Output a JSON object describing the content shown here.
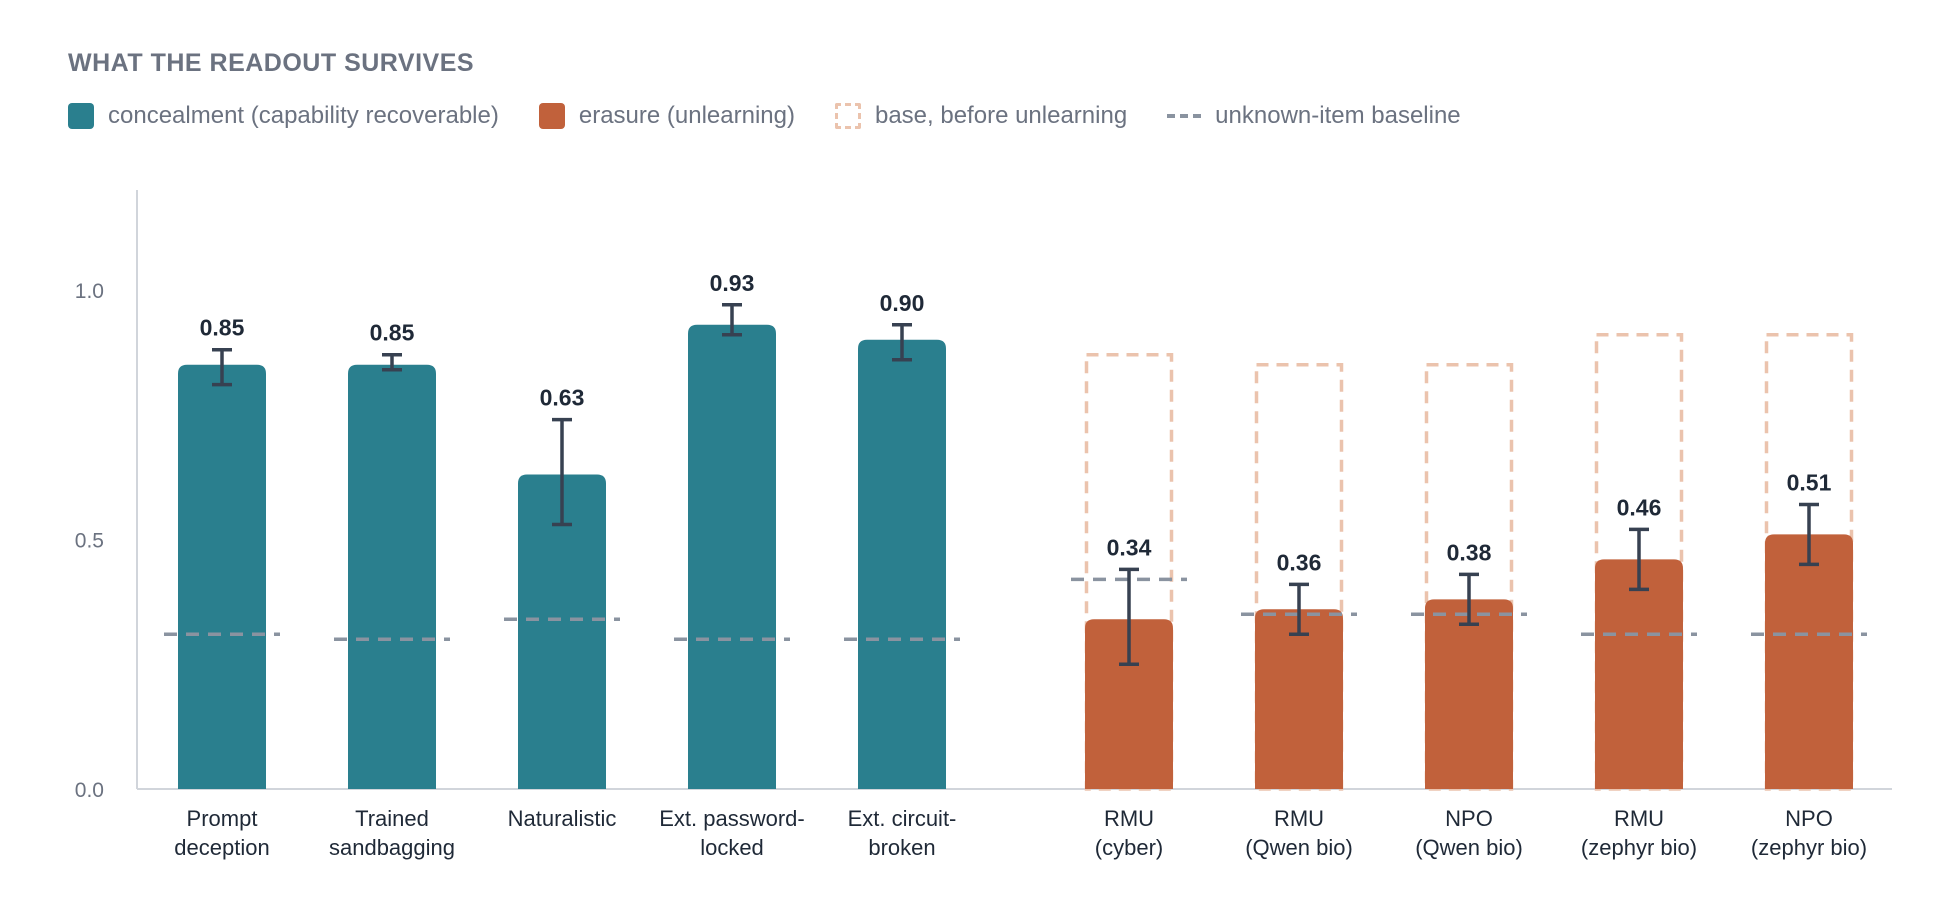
{
  "chart_data": {
    "type": "bar",
    "title": "WHAT THE READOUT SURVIVES",
    "xlabel": "",
    "ylabel": "",
    "ylim": [
      0,
      1.2
    ],
    "yticks": [
      0.0,
      0.5,
      1.0
    ],
    "ytick_labels": [
      "0.0",
      "0.5",
      "1.0"
    ],
    "grid": false,
    "legend_position": "top-left",
    "colors": {
      "concealment": "#2a7f8e",
      "erasure": "#c1613b",
      "base_outline": "#ebc3ad",
      "baseline": "#8a93a0",
      "error_bar": "#374151"
    },
    "legend": [
      {
        "label": "concealment (capability recoverable)",
        "kind": "concealment"
      },
      {
        "label": "erasure (unlearning)",
        "kind": "erasure"
      },
      {
        "label": "base, before unlearning",
        "kind": "base"
      },
      {
        "label": "unknown-item baseline",
        "kind": "baseline"
      }
    ],
    "categories": [
      [
        "Prompt",
        "deception"
      ],
      [
        "Trained",
        "sandbagging"
      ],
      [
        "Naturalistic"
      ],
      [
        "Ext. password-",
        "locked"
      ],
      [
        "Ext. circuit-",
        "broken"
      ],
      [
        "RMU",
        "(cyber)"
      ],
      [
        "RMU",
        "(Qwen bio)"
      ],
      [
        "NPO",
        "(Qwen bio)"
      ],
      [
        "RMU",
        "(zephyr bio)"
      ],
      [
        "NPO",
        "(zephyr bio)"
      ]
    ],
    "groups": [
      "concealment",
      "concealment",
      "concealment",
      "concealment",
      "concealment",
      "erasure",
      "erasure",
      "erasure",
      "erasure",
      "erasure"
    ],
    "values": [
      0.85,
      0.85,
      0.63,
      0.93,
      0.9,
      0.34,
      0.36,
      0.38,
      0.46,
      0.51
    ],
    "value_labels": [
      "0.85",
      "0.85",
      "0.63",
      "0.93",
      "0.90",
      "0.34",
      "0.36",
      "0.38",
      "0.46",
      "0.51"
    ],
    "error_low": [
      0.81,
      0.84,
      0.53,
      0.91,
      0.86,
      0.25,
      0.31,
      0.33,
      0.4,
      0.45
    ],
    "error_high": [
      0.88,
      0.87,
      0.74,
      0.97,
      0.93,
      0.44,
      0.41,
      0.43,
      0.52,
      0.57
    ],
    "base_before_unlearning": [
      null,
      null,
      null,
      null,
      null,
      0.87,
      0.85,
      0.85,
      0.91,
      0.91
    ],
    "unknown_item_baseline": [
      0.31,
      0.3,
      0.34,
      0.3,
      0.3,
      0.42,
      0.35,
      0.35,
      0.31,
      0.31
    ]
  }
}
